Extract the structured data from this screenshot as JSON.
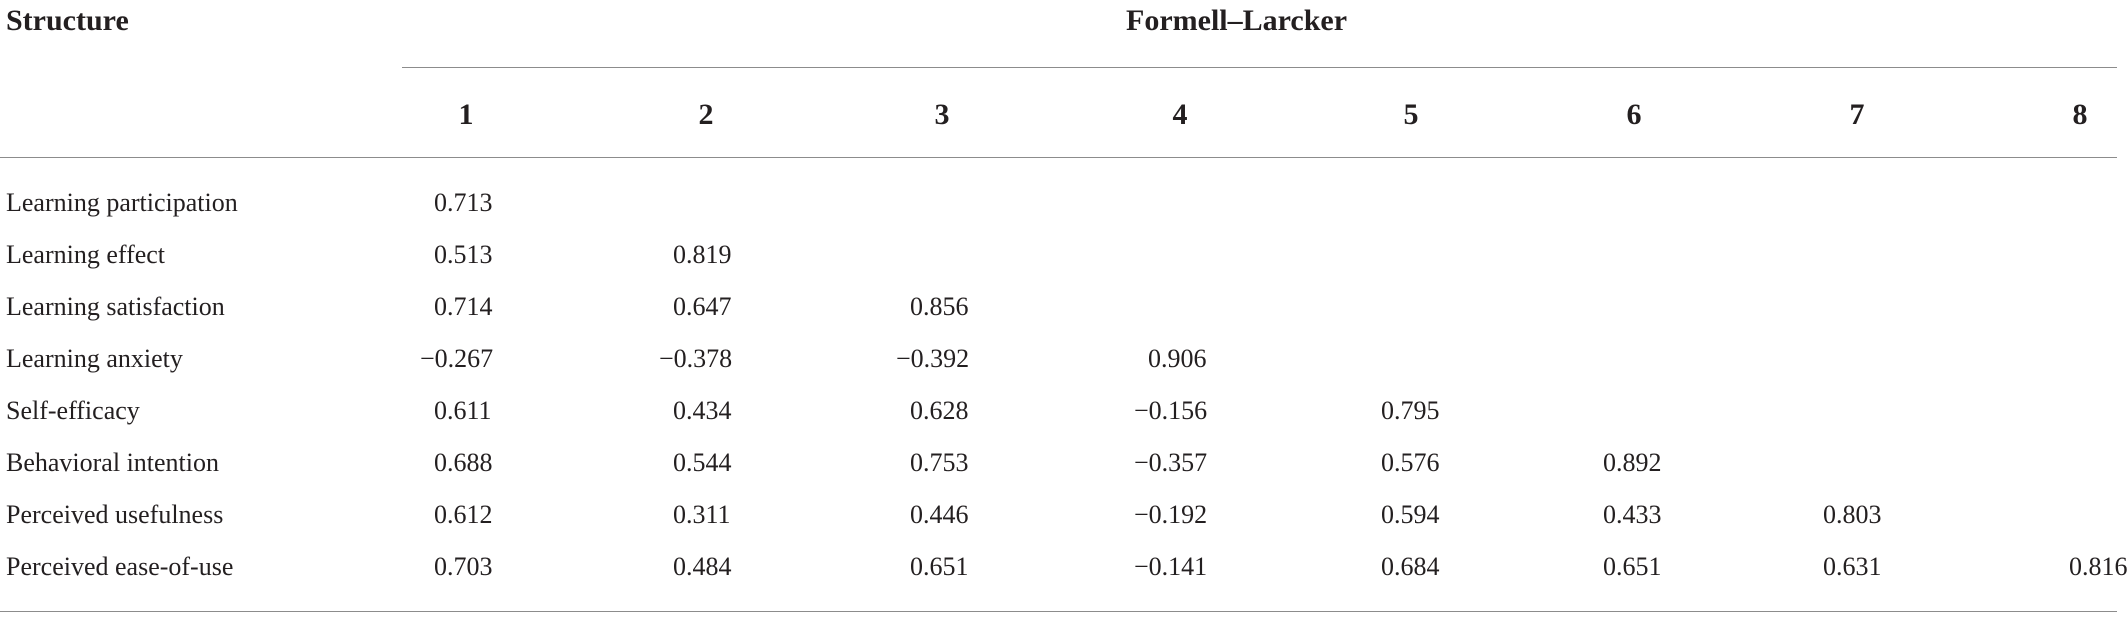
{
  "table": {
    "stub_header": "Structure",
    "group_header": "Formell–Larcker",
    "columns": [
      "1",
      "2",
      "3",
      "4",
      "5",
      "6",
      "7",
      "8"
    ],
    "rows": [
      {
        "label": "Learning participation",
        "values": [
          "0.713"
        ]
      },
      {
        "label": "Learning effect",
        "values": [
          "0.513",
          "0.819"
        ]
      },
      {
        "label": "Learning satisfaction",
        "values": [
          "0.714",
          "0.647",
          "0.856"
        ]
      },
      {
        "label": "Learning anxiety",
        "values": [
          "−0.267",
          "−0.378",
          "−0.392",
          "0.906"
        ]
      },
      {
        "label": "Self-efficacy",
        "values": [
          "0.611",
          "0.434",
          "0.628",
          "−0.156",
          "0.795"
        ]
      },
      {
        "label": "Behavioral intention",
        "values": [
          "0.688",
          "0.544",
          "0.753",
          "−0.357",
          "0.576",
          "0.892"
        ]
      },
      {
        "label": "Perceived usefulness",
        "values": [
          "0.612",
          "0.311",
          "0.446",
          "−0.192",
          "0.594",
          "0.433",
          "0.803"
        ]
      },
      {
        "label": "Perceived ease-of-use",
        "values": [
          "0.703",
          "0.484",
          "0.651",
          "−0.141",
          "0.684",
          "0.651",
          "0.631",
          "0.816"
        ]
      }
    ]
  }
}
